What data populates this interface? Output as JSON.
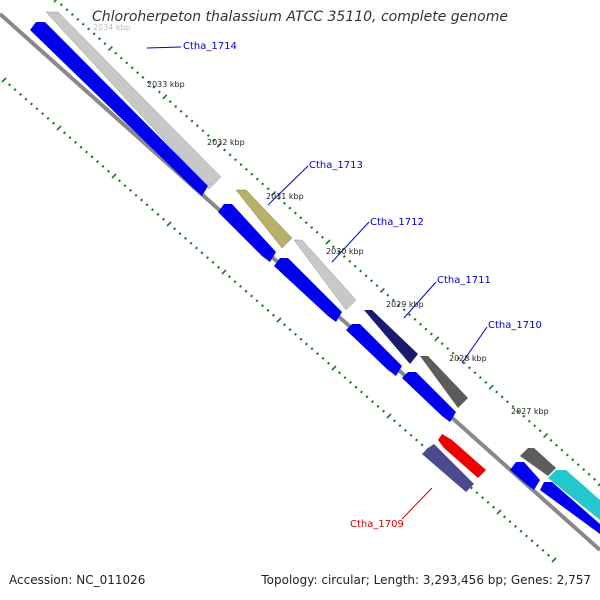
{
  "title": "Chloroherpeton thalassium ATCC 35110, complete genome",
  "footer": {
    "accession": "Accession: NC_011026",
    "summary": "Topology: circular; Length: 3,293,456 bp; Genes: 2,757"
  },
  "ticks": [
    "2034 kbp",
    "2033 kbp",
    "2032 kbp",
    "2031 kbp",
    "2030 kbp",
    "2029 kbp",
    "2028 kbp",
    "2027 kbp"
  ],
  "genes": [
    {
      "name": "Ctha_1714",
      "color": "#0000cc"
    },
    {
      "name": "Ctha_1713",
      "color": "#0000cc"
    },
    {
      "name": "Ctha_1712",
      "color": "#0000cc"
    },
    {
      "name": "Ctha_1711",
      "color": "#0000cc"
    },
    {
      "name": "Ctha_1710",
      "color": "#0000cc"
    },
    {
      "name": "Ctha_1709",
      "color": "#cc0000"
    }
  ],
  "colors": {
    "backbone": "#888888",
    "forward_strand": "#0000ee",
    "tick_marks": "#1a7a1a",
    "light_gray": "#c8c8c8",
    "olive": "#b8b06a",
    "navy": "#1a1a6e",
    "dark_gray": "#5c5c5c",
    "red": "#ee0000",
    "slate": "#4a4a8c",
    "cyan": "#22c8cc"
  }
}
